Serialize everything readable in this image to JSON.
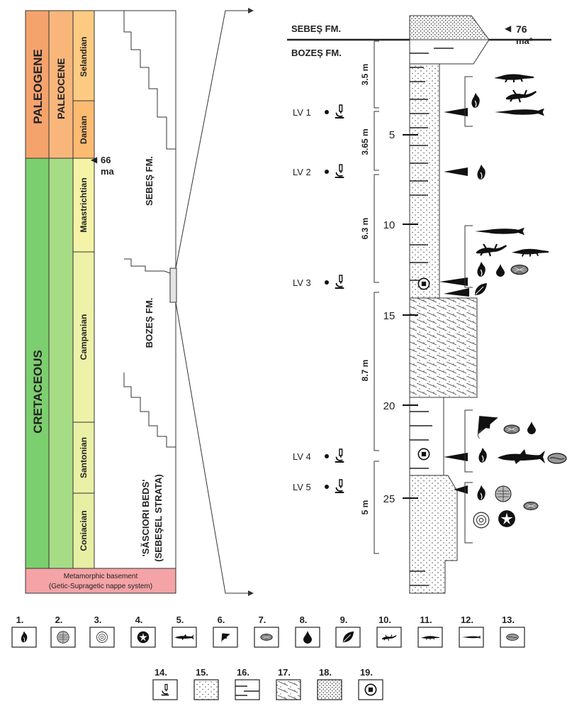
{
  "column": {
    "eras": [
      {
        "name": "PALEOGENE",
        "color": "#f5a36d"
      },
      {
        "name": "CRETACEOUS",
        "color": "#7ccf6e"
      }
    ],
    "epochs": [
      {
        "name": "PALEOCENE",
        "color": "#f8b67b"
      },
      {
        "name": "",
        "color": "#a7dc86"
      }
    ],
    "stages": [
      {
        "name": "Selandian",
        "color": "#fecb82"
      },
      {
        "name": "Danian",
        "color": "#fdbb72"
      },
      {
        "name": "Maastrichtian",
        "color": "#f5f3a7"
      },
      {
        "name": "Campanian",
        "color": "#eef1a8"
      },
      {
        "name": "Santonian",
        "color": "#eaf0a5"
      },
      {
        "name": "Coniacian",
        "color": "#e7efa4"
      }
    ],
    "boundary_age": "66",
    "boundary_unit": "ma",
    "basement_line1": "Metamorphic basement",
    "basement_line2": "(Getic-Supragetic nappe system)",
    "basement_color": "#f4a3a6",
    "formations": [
      "SEBEŞ FM.",
      "BOZEŞ FM."
    ],
    "sasciori_line1": "'SĂSCIORI BEDS'",
    "sasciori_line2": "(SEBEŞEL STRATA)"
  },
  "log": {
    "top_formation": "SEBEŞ FM.",
    "lower_formation": "BOZEŞ FM.",
    "age_value": "76",
    "age_unit": "ma*",
    "depth_ticks": [
      "5",
      "10",
      "15",
      "20",
      "25"
    ],
    "thicknesses": [
      "3.5 m",
      "3.65 m",
      "6.3 m",
      "8.7 m",
      "5 m"
    ],
    "levels": [
      "LV 1",
      "LV 2",
      "LV 3",
      "LV 4",
      "LV 5"
    ]
  },
  "legend": {
    "numbers": [
      "1.",
      "2.",
      "3.",
      "4.",
      "5.",
      "6.",
      "7.",
      "8.",
      "9.",
      "10.",
      "11.",
      "12.",
      "13.",
      "14.",
      "15.",
      "16.",
      "17.",
      "18.",
      "19."
    ],
    "icons": [
      "gastropod-icon",
      "sand-dollar-icon",
      "ammonite-icon",
      "echinoid-icon",
      "shark-icon",
      "ray-icon",
      "seed-icon",
      "drop-icon",
      "leaf-icon",
      "lizard-icon",
      "crocodile-icon",
      "gar-fish-icon",
      "bivalve-icon",
      "microscope-icon",
      "sandstone-pattern",
      "mudstone-pattern",
      "cross-bedded-pattern",
      "conglomerate-pattern",
      "sample-marker-icon"
    ]
  }
}
